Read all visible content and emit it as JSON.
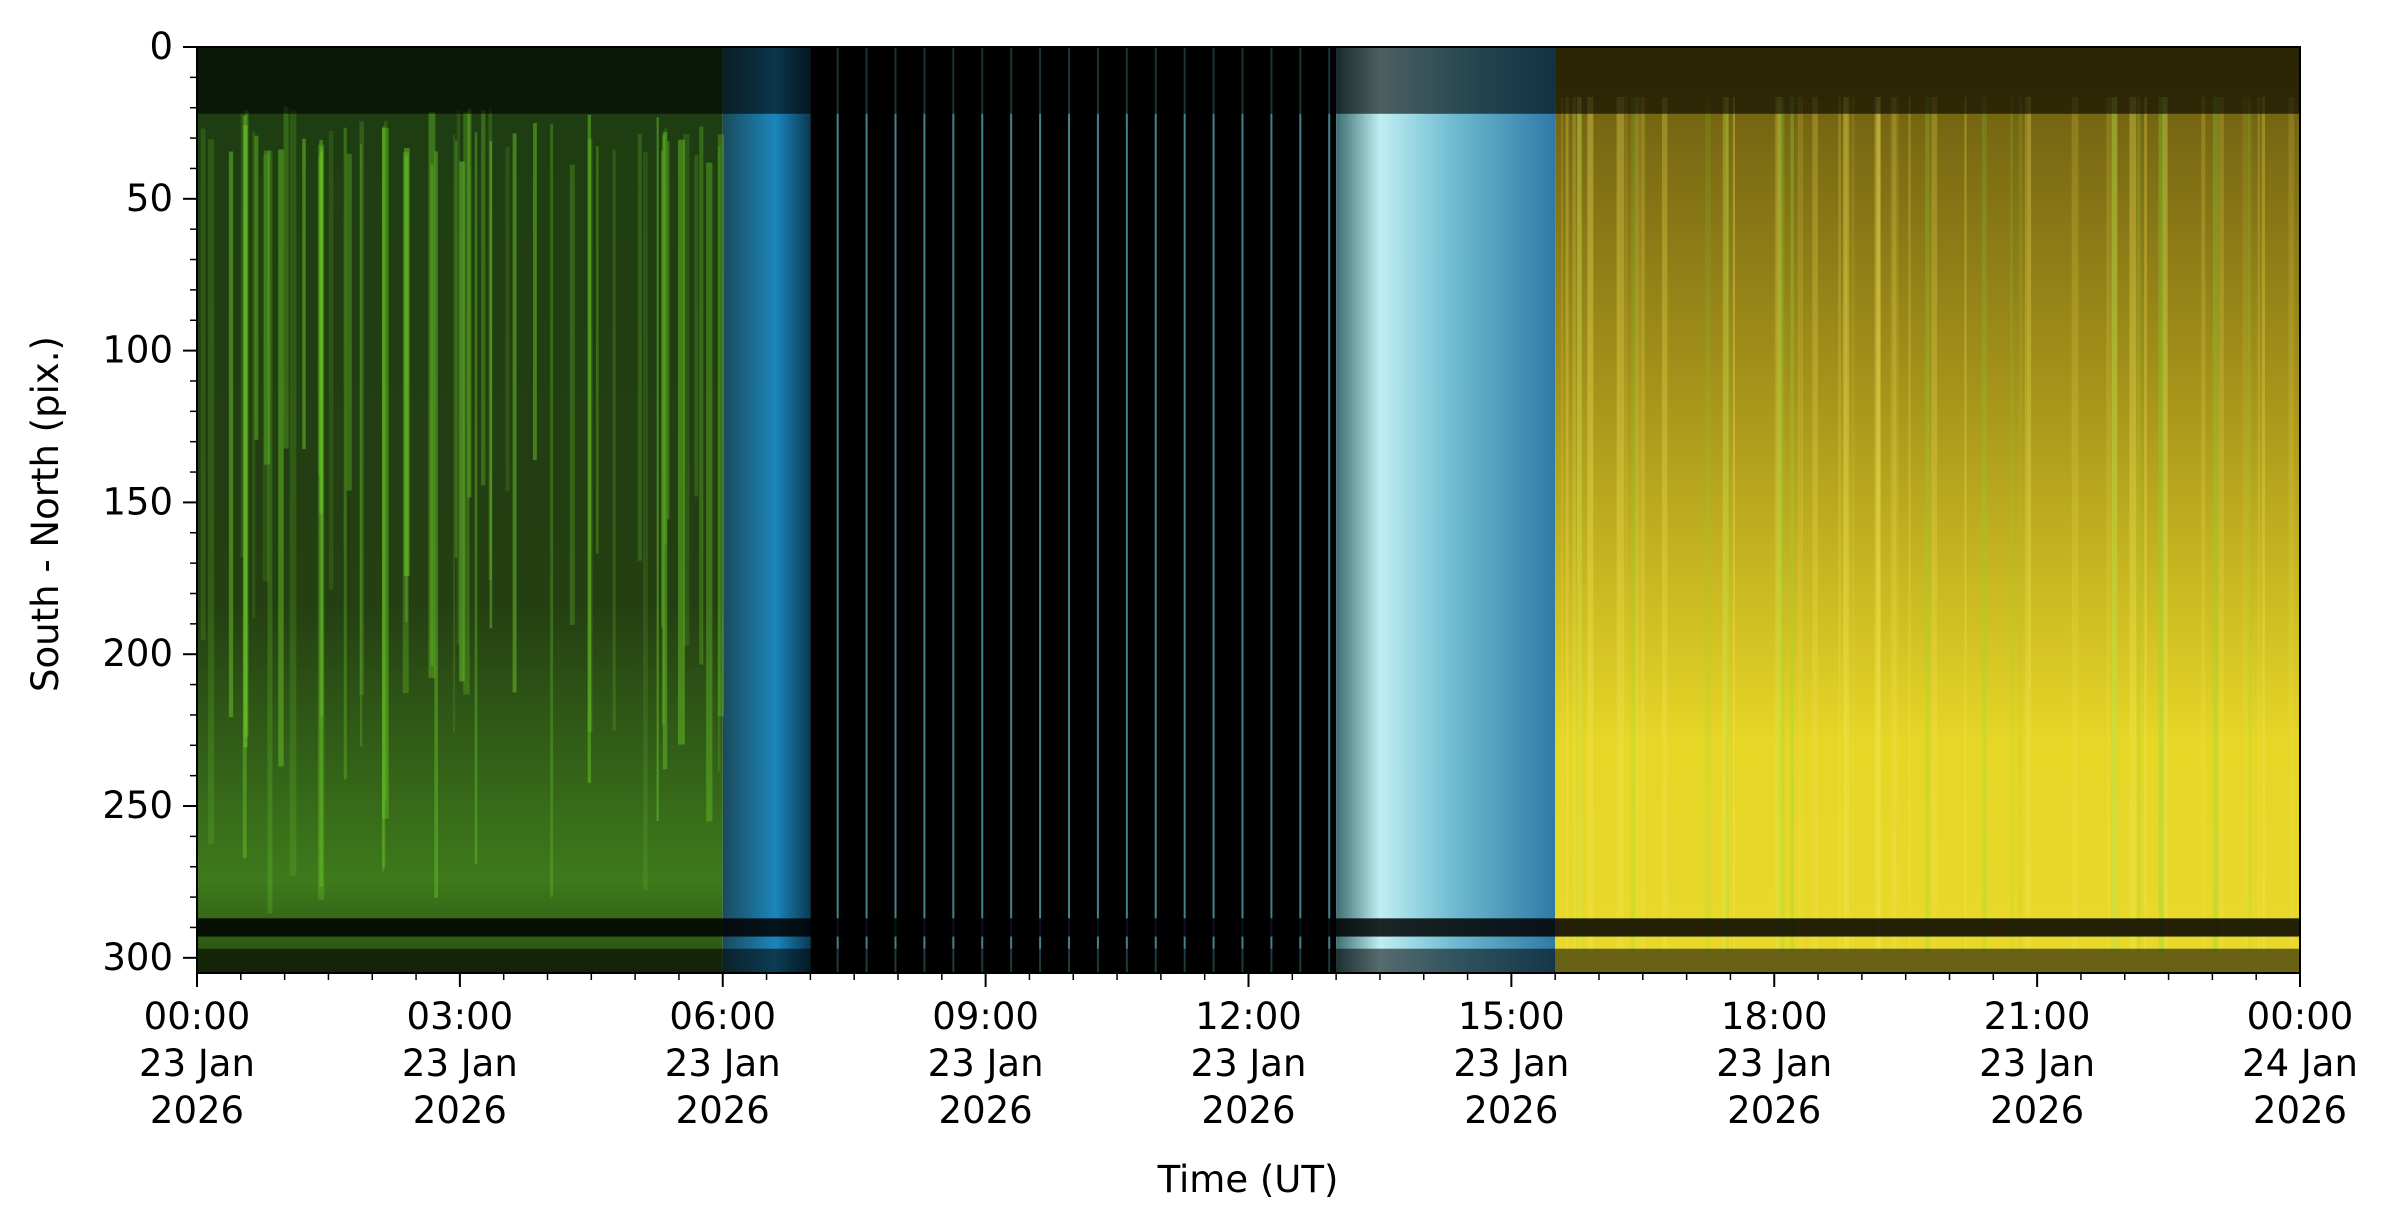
{
  "chart_data": {
    "type": "heatmap",
    "title": "",
    "xlabel": "Time (UT)",
    "ylabel": "South - North (pix.)",
    "x_range": [
      "2026-01-23T00:00",
      "2026-01-24T00:00"
    ],
    "y_range": [
      305,
      0
    ],
    "y_inverted": true,
    "grid": false,
    "x_ticks": [
      {
        "time": "2026-01-23T00:00",
        "lines": [
          "00:00",
          "23 Jan",
          "2026"
        ]
      },
      {
        "time": "2026-01-23T03:00",
        "lines": [
          "03:00",
          "23 Jan",
          "2026"
        ]
      },
      {
        "time": "2026-01-23T06:00",
        "lines": [
          "06:00",
          "23 Jan",
          "2026"
        ]
      },
      {
        "time": "2026-01-23T09:00",
        "lines": [
          "09:00",
          "23 Jan",
          "2026"
        ]
      },
      {
        "time": "2026-01-23T12:00",
        "lines": [
          "12:00",
          "23 Jan",
          "2026"
        ]
      },
      {
        "time": "2026-01-23T15:00",
        "lines": [
          "15:00",
          "23 Jan",
          "2026"
        ]
      },
      {
        "time": "2026-01-23T18:00",
        "lines": [
          "18:00",
          "23 Jan",
          "2026"
        ]
      },
      {
        "time": "2026-01-23T21:00",
        "lines": [
          "21:00",
          "23 Jan",
          "2026"
        ]
      },
      {
        "time": "2026-01-24T00:00",
        "lines": [
          "00:00",
          "24 Jan",
          "2026"
        ]
      }
    ],
    "y_ticks": [
      0,
      50,
      100,
      150,
      200,
      250,
      300
    ],
    "y_minor_step": 10,
    "x_minor_step_hours": 0.5,
    "segments": [
      {
        "start_hour": 0.0,
        "end_hour": 6.0,
        "color": "#2f5a16",
        "description": "green auroral emission"
      },
      {
        "start_hour": 6.0,
        "end_hour": 7.0,
        "color": "#1b7fb0",
        "description": "twilight blue"
      },
      {
        "start_hour": 7.0,
        "end_hour": 13.0,
        "color": "#000000",
        "description": "daylight gap with thin stripes"
      },
      {
        "start_hour": 13.0,
        "end_hour": 15.5,
        "color": "#8fd6e6",
        "description": "twilight cyan"
      },
      {
        "start_hour": 15.5,
        "end_hour": 24.0,
        "color": "#d6c21e",
        "description": "yellow sky"
      }
    ]
  }
}
